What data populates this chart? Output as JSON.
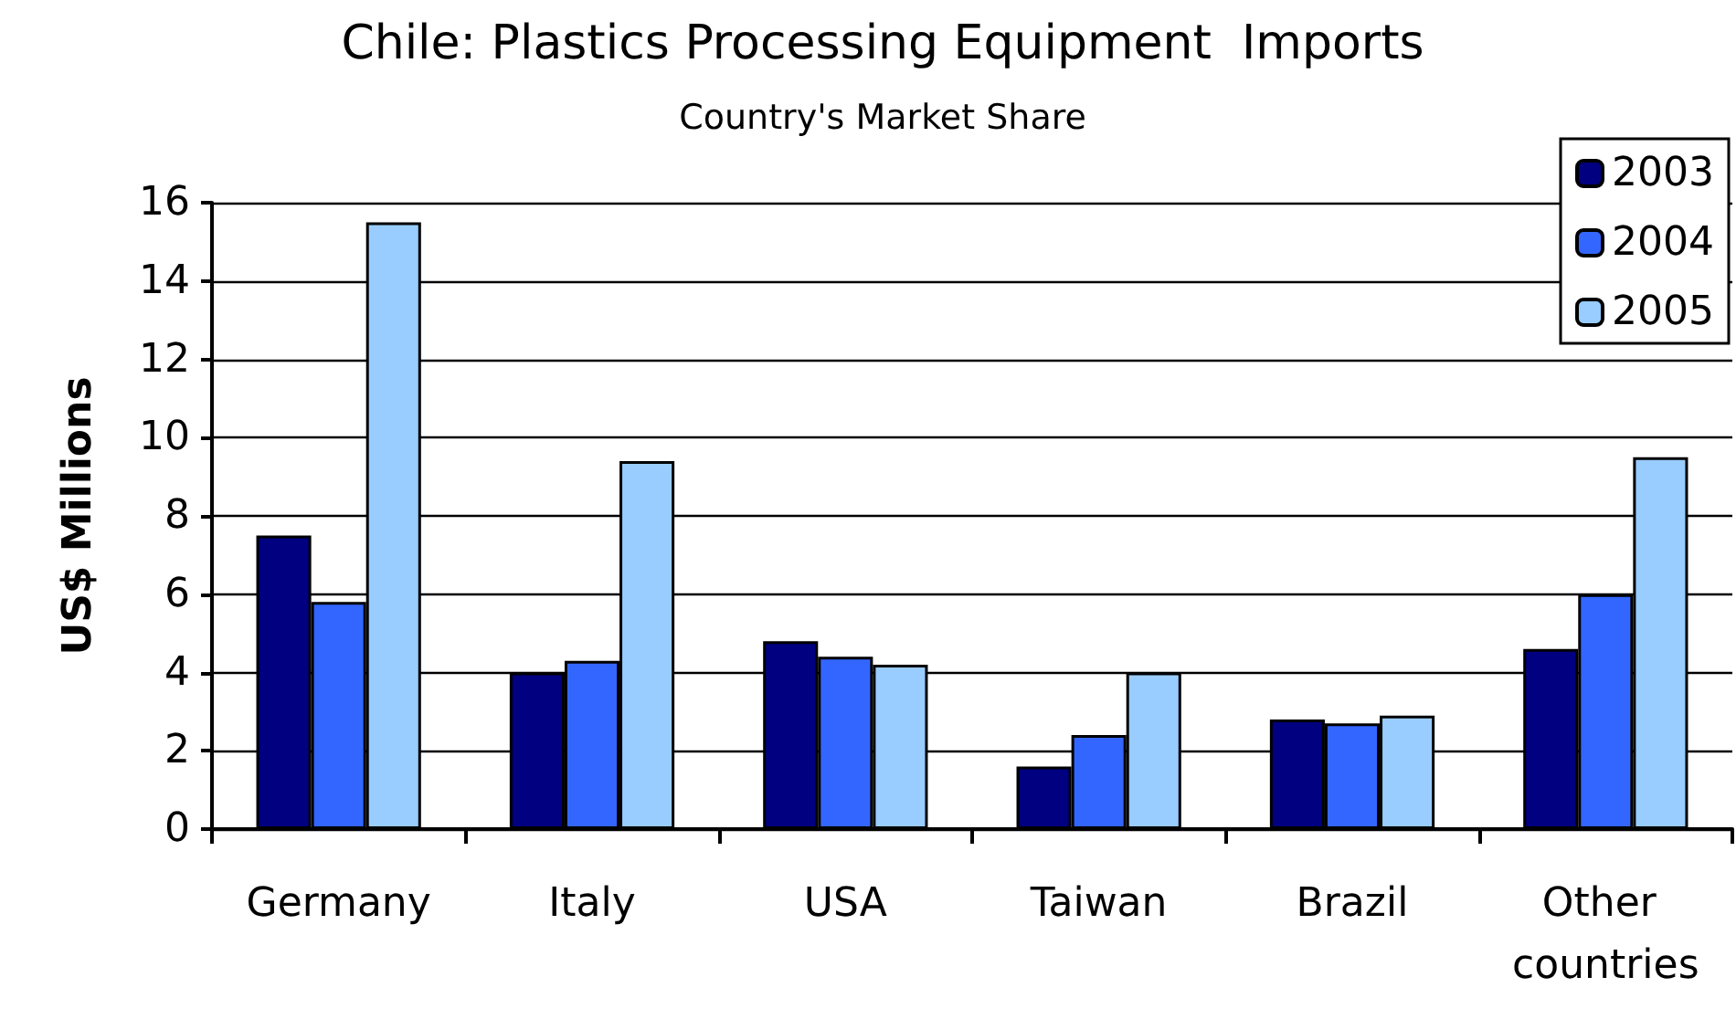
{
  "chart_data": {
    "type": "bar",
    "title": "Chile: Plastics Processing Equipment  Imports",
    "subtitle": "Country's Market Share",
    "ylabel": "US$ Millions",
    "categories": [
      "Germany",
      "Italy",
      "USA",
      "Taiwan",
      "Brazil",
      "Other countries"
    ],
    "series": [
      {
        "name": "2003",
        "color": "#000080",
        "values": [
          7.5,
          4.0,
          4.8,
          1.6,
          2.8,
          4.6
        ]
      },
      {
        "name": "2004",
        "color": "#3366ff",
        "values": [
          5.8,
          4.3,
          4.4,
          2.4,
          2.7,
          6.0
        ]
      },
      {
        "name": "2005",
        "color": "#99ccff",
        "values": [
          15.5,
          9.4,
          4.2,
          4.0,
          2.9,
          9.5
        ]
      }
    ],
    "ylim": [
      0,
      16
    ],
    "yticks": [
      0,
      2,
      4,
      6,
      8,
      10,
      12,
      14,
      16
    ],
    "grid": true,
    "legend": "top right"
  }
}
